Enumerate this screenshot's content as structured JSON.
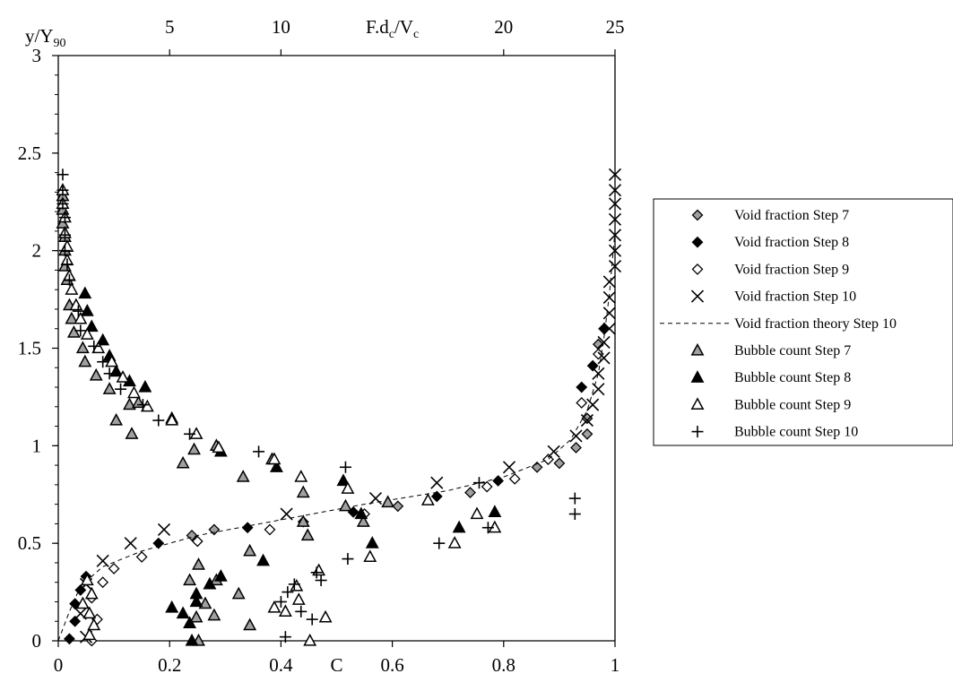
{
  "chart_data": {
    "type": "scatter",
    "xlabel": "C",
    "ylabel_main": "y/Y",
    "ylabel_sub": "90",
    "x2label_main": "F.d",
    "x2label_sub": "c",
    "x2label_mid": "/V",
    "x2label_sub2": "c",
    "xlim": [
      0,
      1
    ],
    "ylim": [
      0,
      3
    ],
    "x2lim": [
      0,
      25
    ],
    "x_ticks": [
      0,
      0.2,
      0.4,
      0.6,
      0.8,
      1
    ],
    "x_tick_labels": [
      "0",
      "0.2",
      "0.4",
      "0.6",
      "0.8",
      "1"
    ],
    "y_ticks": [
      0,
      0.5,
      1,
      1.5,
      2,
      2.5,
      3
    ],
    "y_tick_labels": [
      "0",
      "0.5",
      "1",
      "1.5",
      "2",
      "2.5",
      "3"
    ],
    "x2_ticks": [
      5,
      10,
      20,
      25
    ],
    "x2_tick_labels": [
      "5",
      "10",
      "20",
      "25"
    ],
    "grid": false,
    "legend_position": "right",
    "series": [
      {
        "name": "Void fraction Step 7",
        "marker": "diamond",
        "fill": "#a0a0a0",
        "axis": "C",
        "points": [
          [
            0.24,
            0.54
          ],
          [
            0.28,
            0.57
          ],
          [
            0.44,
            0.61
          ],
          [
            0.61,
            0.69
          ],
          [
            0.74,
            0.76
          ],
          [
            0.86,
            0.89
          ],
          [
            0.9,
            0.91
          ],
          [
            0.93,
            0.99
          ],
          [
            0.95,
            1.06
          ],
          [
            0.95,
            1.14
          ],
          [
            0.97,
            1.52
          ]
        ]
      },
      {
        "name": "Void fraction Step 8",
        "marker": "diamond",
        "fill": "#000000",
        "axis": "C",
        "points": [
          [
            0.02,
            0.01
          ],
          [
            0.03,
            0.1
          ],
          [
            0.03,
            0.19
          ],
          [
            0.04,
            0.26
          ],
          [
            0.05,
            0.33
          ],
          [
            0.18,
            0.5
          ],
          [
            0.34,
            0.58
          ],
          [
            0.53,
            0.66
          ],
          [
            0.68,
            0.74
          ],
          [
            0.79,
            0.82
          ],
          [
            0.94,
            1.3
          ],
          [
            0.96,
            1.41
          ],
          [
            0.98,
            1.6
          ]
        ]
      },
      {
        "name": "Void fraction Step 9",
        "marker": "diamond",
        "fill": "#ffffff",
        "axis": "C",
        "points": [
          [
            0.06,
            0.0
          ],
          [
            0.07,
            0.11
          ],
          [
            0.06,
            0.22
          ],
          [
            0.08,
            0.3
          ],
          [
            0.1,
            0.37
          ],
          [
            0.15,
            0.43
          ],
          [
            0.25,
            0.51
          ],
          [
            0.38,
            0.57
          ],
          [
            0.55,
            0.65
          ],
          [
            0.77,
            0.79
          ],
          [
            0.82,
            0.83
          ],
          [
            0.88,
            0.93
          ],
          [
            0.94,
            1.22
          ],
          [
            0.97,
            1.47
          ]
        ]
      },
      {
        "name": "Void fraction Step 10",
        "marker": "x",
        "fill": "none",
        "axis": "C",
        "points": [
          [
            0.05,
            0.02
          ],
          [
            0.04,
            0.14
          ],
          [
            0.05,
            0.29
          ],
          [
            0.08,
            0.41
          ],
          [
            0.13,
            0.5
          ],
          [
            0.19,
            0.57
          ],
          [
            0.41,
            0.65
          ],
          [
            0.57,
            0.73
          ],
          [
            0.68,
            0.81
          ],
          [
            0.81,
            0.89
          ],
          [
            0.89,
            0.97
          ],
          [
            0.93,
            1.05
          ],
          [
            0.95,
            1.13
          ],
          [
            0.96,
            1.21
          ],
          [
            0.97,
            1.29
          ],
          [
            0.97,
            1.37
          ],
          [
            0.98,
            1.45
          ],
          [
            0.98,
            1.53
          ],
          [
            0.99,
            1.6
          ],
          [
            0.99,
            1.68
          ],
          [
            0.99,
            1.76
          ],
          [
            0.99,
            1.84
          ],
          [
            1.0,
            1.92
          ],
          [
            1.0,
            2.0
          ],
          [
            1.0,
            2.08
          ],
          [
            1.0,
            2.16
          ],
          [
            1.0,
            2.24
          ],
          [
            1.0,
            2.31
          ],
          [
            1.0,
            2.39
          ]
        ]
      },
      {
        "name": "Void fraction theory Step 10",
        "marker": "dashed",
        "axis": "C",
        "points": [
          [
            0.0,
            0.0
          ],
          [
            0.02,
            0.15
          ],
          [
            0.04,
            0.28
          ],
          [
            0.08,
            0.38
          ],
          [
            0.15,
            0.46
          ],
          [
            0.25,
            0.54
          ],
          [
            0.4,
            0.62
          ],
          [
            0.55,
            0.7
          ],
          [
            0.7,
            0.77
          ],
          [
            0.8,
            0.84
          ],
          [
            0.88,
            0.93
          ],
          [
            0.92,
            1.03
          ],
          [
            0.95,
            1.18
          ],
          [
            0.97,
            1.37
          ],
          [
            0.98,
            1.55
          ],
          [
            0.99,
            1.78
          ],
          [
            1.0,
            2.1
          ],
          [
            1.0,
            2.39
          ]
        ]
      },
      {
        "name": "Bubble count Step 7",
        "marker": "triangle",
        "fill": "#a0a0a0",
        "axis": "F",
        "points": [
          [
            6.3,
            0.0
          ],
          [
            6.2,
            0.12
          ],
          [
            6.6,
            0.19
          ],
          [
            5.9,
            0.31
          ],
          [
            6.3,
            0.39
          ],
          [
            7.0,
            0.13
          ],
          [
            7.1,
            0.31
          ],
          [
            8.1,
            0.24
          ],
          [
            8.6,
            0.08
          ],
          [
            8.3,
            0.84
          ],
          [
            8.6,
            0.46
          ],
          [
            9.6,
            0.93
          ],
          [
            11.0,
            0.61
          ],
          [
            11.2,
            0.54
          ],
          [
            11.0,
            0.76
          ],
          [
            12.9,
            0.69
          ],
          [
            13.7,
            0.61
          ],
          [
            14.8,
            0.71
          ],
          [
            7.1,
            1.0
          ],
          [
            6.1,
            0.98
          ],
          [
            5.6,
            0.91
          ],
          [
            5.1,
            1.14
          ],
          [
            3.3,
            1.06
          ],
          [
            2.6,
            1.13
          ],
          [
            3.2,
            1.21
          ],
          [
            3.6,
            1.22
          ],
          [
            2.3,
            1.29
          ],
          [
            1.7,
            1.36
          ],
          [
            1.2,
            1.43
          ],
          [
            1.1,
            1.5
          ],
          [
            0.7,
            1.58
          ],
          [
            0.6,
            1.65
          ],
          [
            0.5,
            1.72
          ],
          [
            0.4,
            1.85
          ],
          [
            0.3,
            1.92
          ],
          [
            0.3,
            2.0
          ],
          [
            0.3,
            2.07
          ],
          [
            0.2,
            2.14
          ],
          [
            0.2,
            2.21
          ],
          [
            0.2,
            2.28
          ]
        ]
      },
      {
        "name": "Bubble count Step 8",
        "marker": "triangle",
        "fill": "#000000",
        "axis": "F",
        "points": [
          [
            5.1,
            0.17
          ],
          [
            5.6,
            0.14
          ],
          [
            6.2,
            0.2
          ],
          [
            6.0,
            0.0
          ],
          [
            6.2,
            0.24
          ],
          [
            5.9,
            0.09
          ],
          [
            6.8,
            0.29
          ],
          [
            7.3,
            0.33
          ],
          [
            9.2,
            0.41
          ],
          [
            9.8,
            0.89
          ],
          [
            12.8,
            0.82
          ],
          [
            13.6,
            0.65
          ],
          [
            14.1,
            0.5
          ],
          [
            18.0,
            0.58
          ],
          [
            19.6,
            0.66
          ],
          [
            7.3,
            0.97
          ],
          [
            3.9,
            1.3
          ],
          [
            3.2,
            1.33
          ],
          [
            2.6,
            1.38
          ],
          [
            2.3,
            1.46
          ],
          [
            2.0,
            1.54
          ],
          [
            1.5,
            1.61
          ],
          [
            1.3,
            1.69
          ],
          [
            1.2,
            1.78
          ]
        ]
      },
      {
        "name": "Bubble count Step 9",
        "marker": "triangle",
        "fill": "#ffffff",
        "axis": "F",
        "points": [
          [
            1.4,
            0.03
          ],
          [
            1.6,
            0.08
          ],
          [
            1.4,
            0.14
          ],
          [
            1.1,
            0.19
          ],
          [
            1.5,
            0.24
          ],
          [
            1.3,
            0.31
          ],
          [
            9.7,
            0.17
          ],
          [
            10.8,
            0.21
          ],
          [
            11.7,
            0.36
          ],
          [
            12.0,
            0.12
          ],
          [
            10.7,
            0.28
          ],
          [
            10.2,
            0.15
          ],
          [
            11.3,
            0.0
          ],
          [
            10.9,
            0.84
          ],
          [
            13.0,
            0.78
          ],
          [
            14.0,
            0.43
          ],
          [
            16.6,
            0.72
          ],
          [
            17.8,
            0.5
          ],
          [
            18.8,
            0.65
          ],
          [
            19.6,
            0.58
          ],
          [
            9.7,
            0.93
          ],
          [
            7.2,
            0.99
          ],
          [
            6.2,
            1.06
          ],
          [
            5.1,
            1.13
          ],
          [
            4.0,
            1.2
          ],
          [
            3.4,
            1.27
          ],
          [
            2.9,
            1.35
          ],
          [
            2.4,
            1.43
          ],
          [
            1.8,
            1.5
          ],
          [
            1.3,
            1.57
          ],
          [
            1.0,
            1.65
          ],
          [
            0.8,
            1.72
          ],
          [
            0.6,
            1.8
          ],
          [
            0.5,
            1.87
          ],
          [
            0.4,
            1.95
          ],
          [
            0.4,
            2.02
          ],
          [
            0.3,
            2.09
          ],
          [
            0.3,
            2.17
          ],
          [
            0.2,
            2.24
          ],
          [
            0.2,
            2.31
          ]
        ]
      },
      {
        "name": "Bubble count Step 10",
        "marker": "plus",
        "fill": "none",
        "axis": "F",
        "points": [
          [
            10.2,
            0.02
          ],
          [
            10.9,
            0.15
          ],
          [
            11.4,
            0.11
          ],
          [
            10.0,
            0.2
          ],
          [
            10.3,
            0.25
          ],
          [
            10.6,
            0.29
          ],
          [
            11.6,
            0.35
          ],
          [
            11.8,
            0.31
          ],
          [
            13.0,
            0.42
          ],
          [
            12.9,
            0.89
          ],
          [
            9.0,
            0.97
          ],
          [
            17.1,
            0.5
          ],
          [
            18.9,
            0.81
          ],
          [
            19.3,
            0.58
          ],
          [
            23.2,
            0.65
          ],
          [
            23.2,
            0.73
          ],
          [
            5.9,
            1.06
          ],
          [
            4.5,
            1.13
          ],
          [
            3.8,
            1.21
          ],
          [
            2.8,
            1.29
          ],
          [
            2.3,
            1.37
          ],
          [
            2.0,
            1.43
          ],
          [
            1.6,
            1.51
          ],
          [
            1.0,
            1.59
          ],
          [
            0.9,
            1.69
          ],
          [
            0.5,
            1.85
          ],
          [
            0.4,
            1.93
          ],
          [
            0.3,
            2.0
          ],
          [
            0.3,
            2.08
          ],
          [
            0.3,
            2.17
          ],
          [
            0.2,
            2.24
          ],
          [
            0.2,
            2.31
          ],
          [
            0.2,
            2.39
          ]
        ]
      }
    ]
  }
}
